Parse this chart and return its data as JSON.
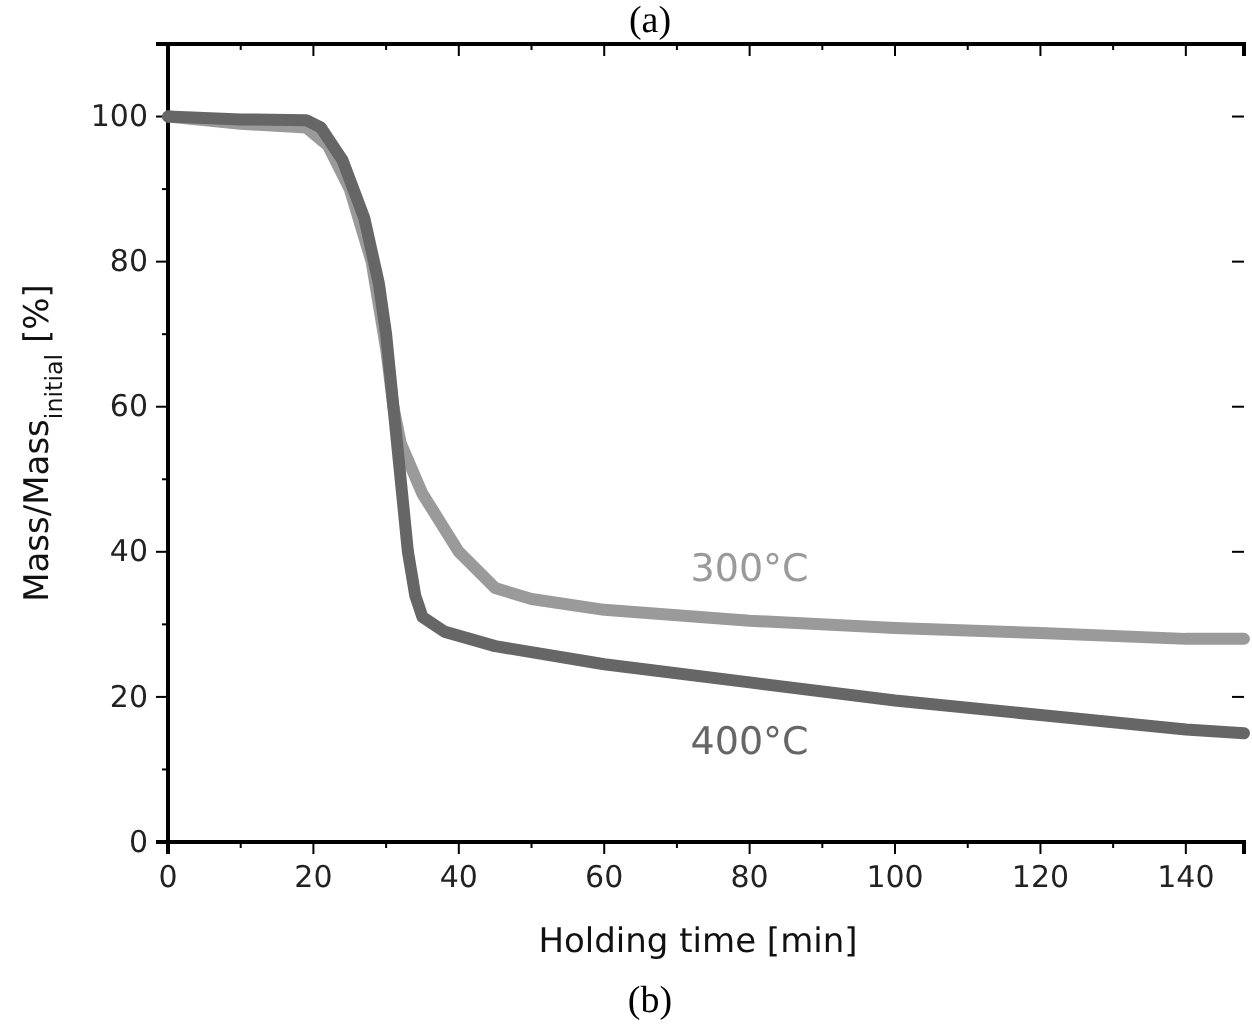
{
  "chart_data": {
    "type": "line",
    "xlabel": "Holding time [min]",
    "ylabel": "Mass/Mass$_{initial}$ [%]",
    "xlim": [
      0,
      148
    ],
    "xticks": [
      0,
      20,
      40,
      60,
      80,
      100,
      120,
      140
    ],
    "ylim": [
      0,
      110
    ],
    "yticks": [
      0,
      20,
      40,
      60,
      80,
      100
    ],
    "annotations": [
      "(a)",
      "(b)"
    ],
    "legend": false,
    "grid": false,
    "line_style": "solid",
    "marker": "none",
    "series": [
      {
        "name": "300°C",
        "color": "#9a9a9a",
        "x": [
          0,
          10,
          19,
          22,
          25,
          28,
          30,
          31,
          32,
          35,
          40,
          45,
          50,
          60,
          80,
          100,
          120,
          140,
          148
        ],
        "values": [
          100,
          99,
          98.5,
          96,
          90,
          80,
          68,
          60,
          55,
          48,
          40,
          35,
          33.5,
          32,
          30.5,
          29.5,
          28.8,
          28,
          28
        ]
      },
      {
        "name": "400°C",
        "color": "#666666",
        "x": [
          0,
          10,
          19,
          21,
          24,
          27,
          29,
          30,
          31,
          32,
          33,
          34,
          35,
          38,
          45,
          60,
          80,
          100,
          120,
          140,
          148
        ],
        "values": [
          100,
          99.6,
          99.5,
          98.5,
          94,
          86,
          77,
          70,
          60,
          50,
          40,
          34,
          31,
          29,
          27,
          24.5,
          22,
          19.5,
          17.5,
          15.5,
          15
        ]
      }
    ]
  }
}
